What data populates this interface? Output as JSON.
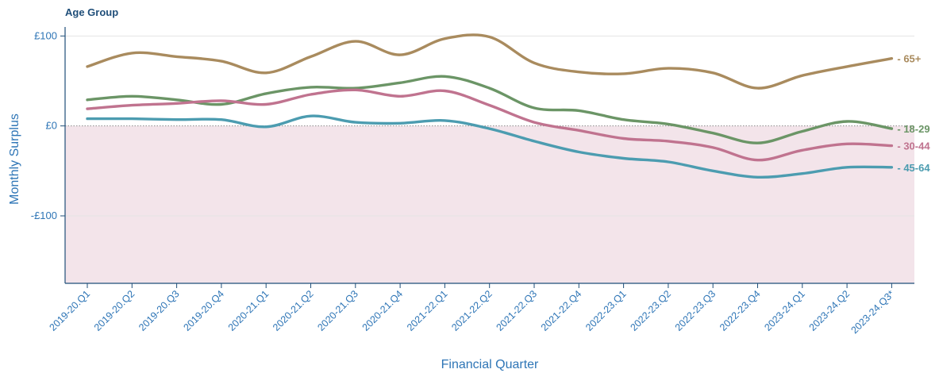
{
  "legend_title": "Age Group",
  "chart_data": {
    "type": "line",
    "xlabel": "Financial Quarter",
    "ylabel": "Monthly Surplus",
    "ylim": [
      -175,
      110
    ],
    "yticks": [
      100,
      0,
      -100
    ],
    "ytick_labels": [
      "£100",
      "£0",
      "-£100"
    ],
    "categories": [
      "2019-20.Q1",
      "2019-20.Q2",
      "2019-20.Q3",
      "2019-20.Q4",
      "2020-21.Q1",
      "2020-21.Q2",
      "2020-21.Q3",
      "2020-21.Q4",
      "2021-22.Q1",
      "2021-22.Q2",
      "2021-22.Q3",
      "2021-22.Q4",
      "2022-23.Q1",
      "2022-23.Q2",
      "2022-23.Q3",
      "2022-23.Q4",
      "2023-24.Q1",
      "2023-24.Q2",
      "2023-24.Q3*"
    ],
    "negative_region_color": "#f3e4ea",
    "grid": true,
    "series": [
      {
        "name": "65+",
        "label": "- 65+",
        "color": "#a98b5e",
        "values": [
          66,
          81,
          77,
          72,
          59,
          77,
          94,
          79,
          97,
          99,
          70,
          60,
          58,
          64,
          59,
          42,
          56,
          66,
          75
        ]
      },
      {
        "name": "18-29",
        "label": "- 18-29",
        "color": "#6b9566",
        "values": [
          29,
          33,
          29,
          24,
          36,
          43,
          42,
          48,
          55,
          42,
          20,
          17,
          7,
          2,
          -8,
          -19,
          -6,
          5,
          -3
        ]
      },
      {
        "name": "30-44",
        "label": "- 30-44",
        "color": "#c0738f",
        "values": [
          19,
          23,
          25,
          28,
          24,
          35,
          40,
          33,
          39,
          23,
          4,
          -5,
          -14,
          -17,
          -24,
          -38,
          -27,
          -20,
          -22
        ]
      },
      {
        "name": "45-64",
        "label": "- 45-64",
        "color": "#4c9cb0",
        "values": [
          8,
          8,
          7,
          7,
          -1,
          11,
          4,
          3,
          6,
          -3,
          -17,
          -29,
          -36,
          -40,
          -50,
          -57,
          -53,
          -46,
          -46
        ]
      }
    ]
  }
}
